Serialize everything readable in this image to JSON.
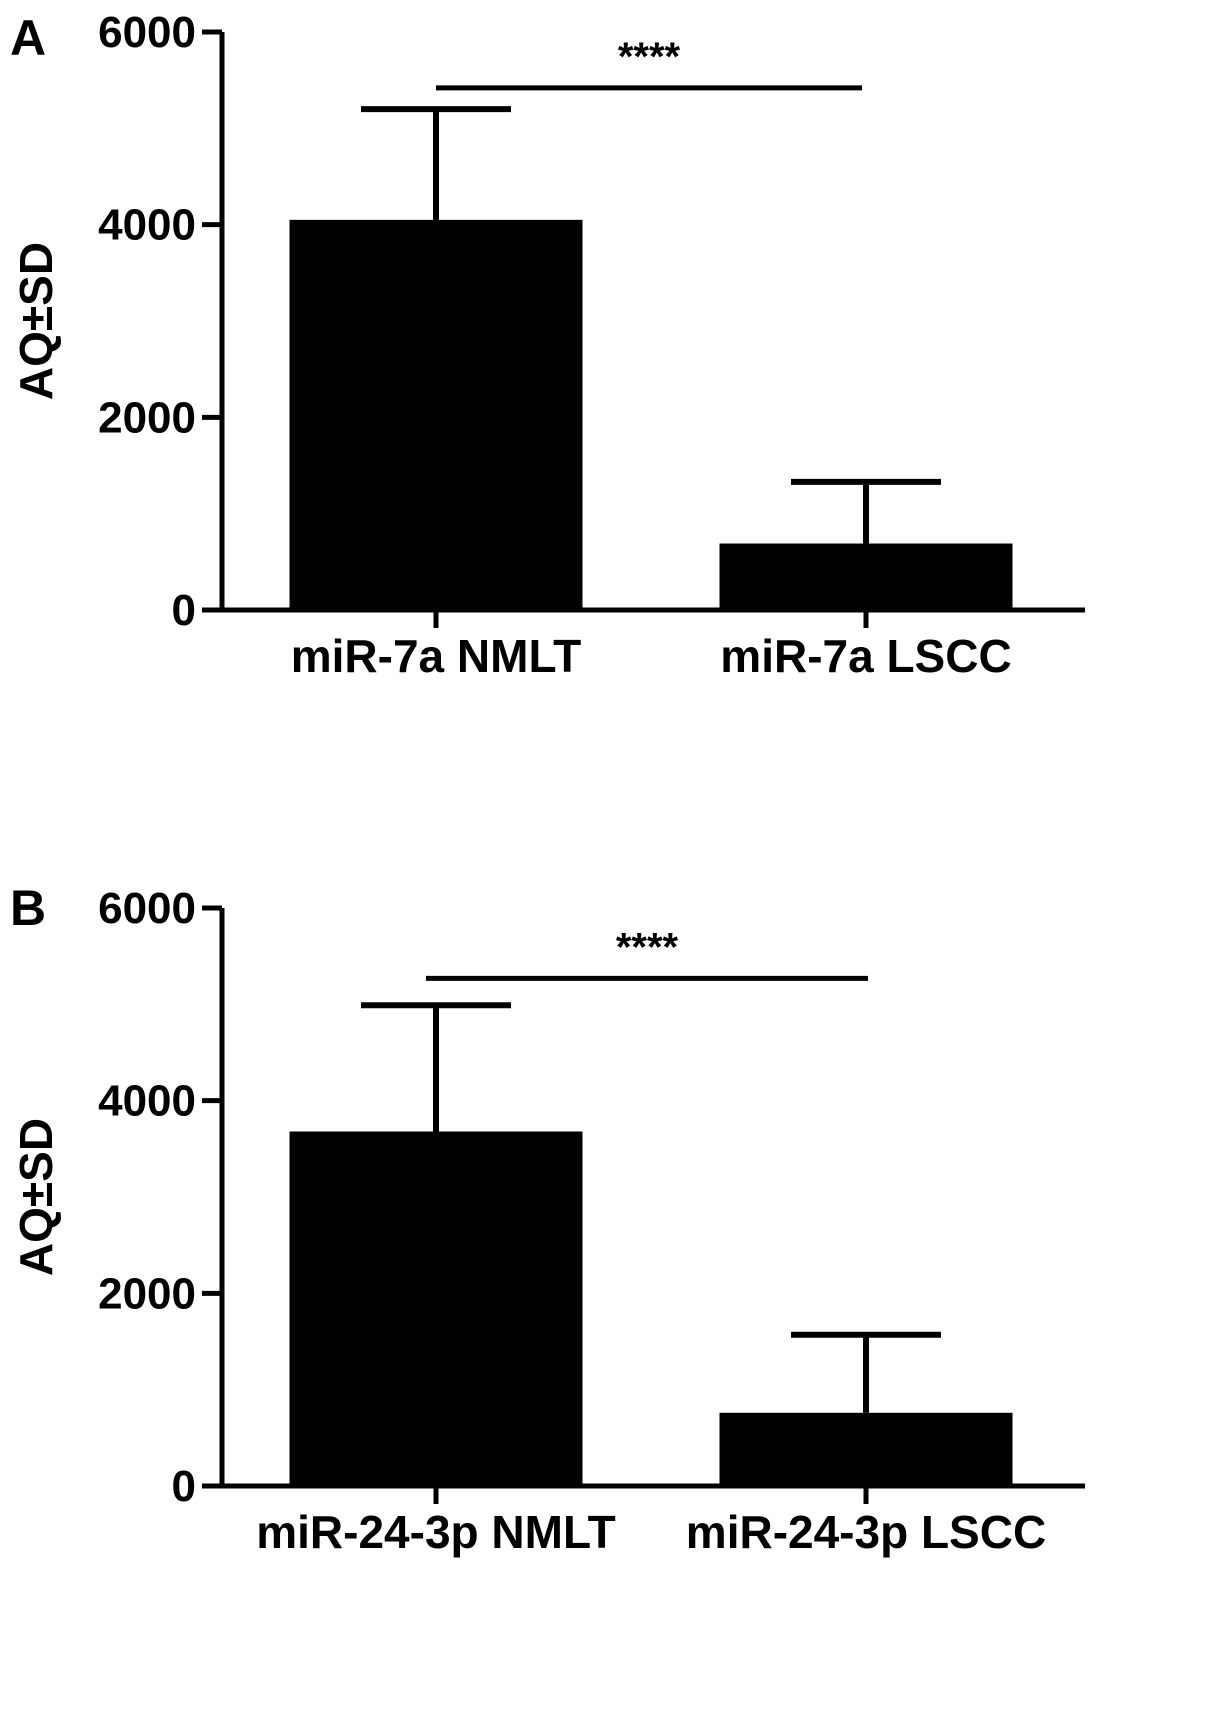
{
  "chart_data": [
    {
      "type": "bar",
      "panel_label": "A",
      "categories": [
        "miR-7a NMLT",
        "miR-7a LSCC"
      ],
      "values": [
        4050,
        690
      ],
      "error_upper": [
        5200,
        1330
      ],
      "ylabel": "AQ±SD",
      "ylim": [
        0,
        6000
      ],
      "yticks": [
        "0",
        "2000",
        "4000",
        "6000"
      ],
      "significance": {
        "text": "****",
        "y": 5420
      },
      "color": "#000000"
    },
    {
      "type": "bar",
      "panel_label": "B",
      "categories": [
        "miR-24-3p NMLT",
        "miR-24-3p LSCC"
      ],
      "values": [
        3680,
        760
      ],
      "error_upper": [
        4990,
        1570
      ],
      "ylabel": "AQ±SD",
      "ylim": [
        0,
        6000
      ],
      "yticks": [
        "0",
        "2000",
        "4000",
        "6000"
      ],
      "significance": {
        "text": "****",
        "y": 5270
      },
      "color": "#000000"
    }
  ]
}
